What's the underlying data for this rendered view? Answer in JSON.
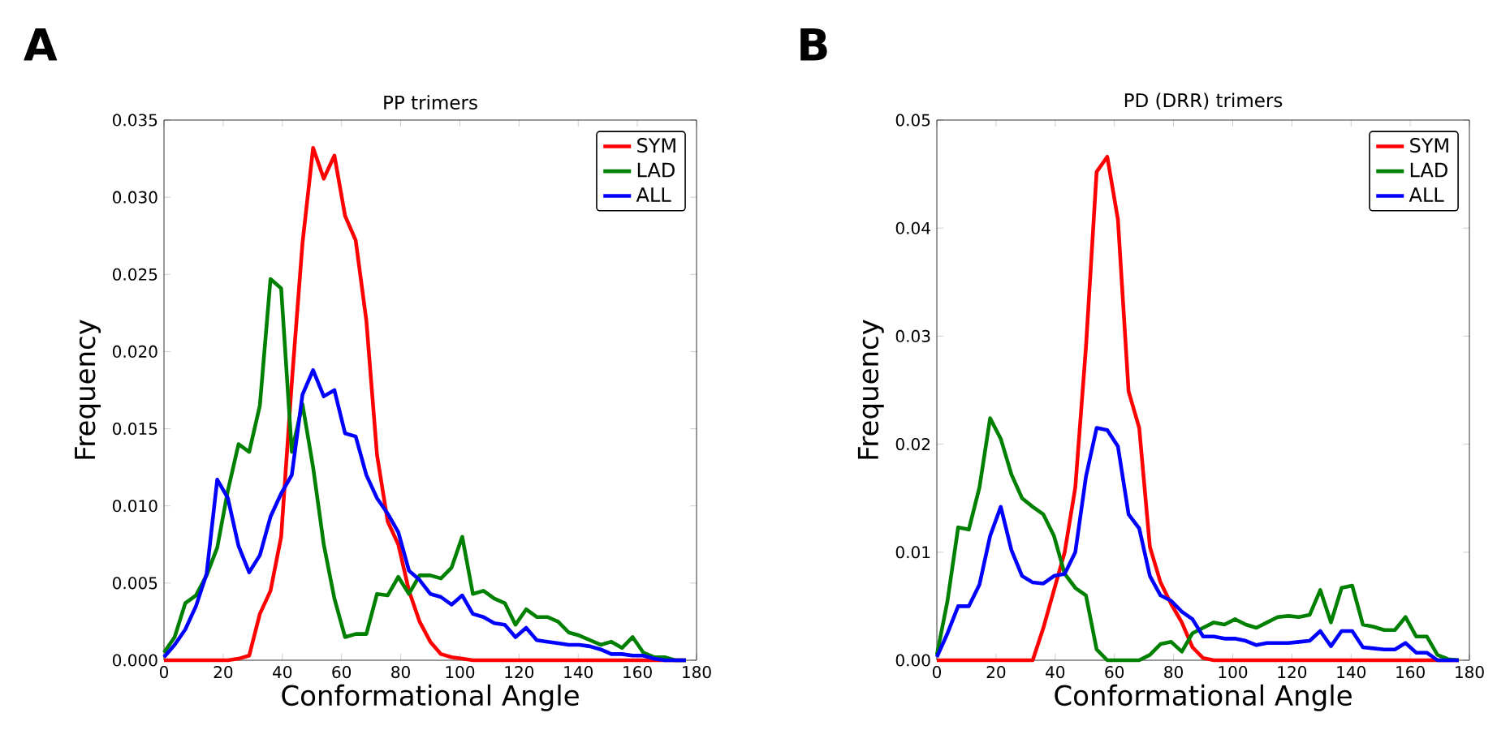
{
  "chart_data": [
    {
      "type": "line",
      "title": "PP trimers",
      "xlabel": "Conformational Angle",
      "ylabel": "Frequency",
      "annotations": [
        "A"
      ],
      "legend": "top right",
      "xlim": [
        0,
        180
      ],
      "ylim": [
        0,
        0.035
      ],
      "xticks": [
        0,
        20,
        40,
        60,
        80,
        100,
        120,
        140,
        160,
        180
      ],
      "yticks": [
        {
          "value": 0,
          "label": "0.000"
        },
        {
          "value": 0.005,
          "label": "0.005"
        },
        {
          "value": 0.01,
          "label": "0.010"
        },
        {
          "value": 0.015,
          "label": "0.015"
        },
        {
          "value": 0.02,
          "label": "0.020"
        },
        {
          "value": 0.025,
          "label": "0.025"
        },
        {
          "value": 0.03,
          "label": "0.030"
        },
        {
          "value": 0.035,
          "label": "0.035"
        }
      ],
      "x": [
        0,
        3.6,
        7.2,
        10.8,
        14.4,
        18,
        21.6,
        25.2,
        28.8,
        32.4,
        36,
        39.6,
        43.2,
        46.8,
        50.4,
        54,
        57.6,
        61.2,
        64.8,
        68.4,
        72,
        75.6,
        79.2,
        82.8,
        86.4,
        90,
        93.6,
        97.2,
        100.8,
        104.4,
        108,
        111.6,
        115.2,
        118.8,
        122.4,
        126,
        129.6,
        133.2,
        136.8,
        140.4,
        144,
        147.6,
        151.2,
        154.8,
        158.4,
        162,
        165.6,
        169.2,
        172.8,
        176.4
      ],
      "series": [
        {
          "name": "SYM",
          "color": "#ff0000",
          "values": [
            0,
            0,
            0,
            0,
            0,
            0,
            0,
            0.0001,
            0.0003,
            0.003,
            0.0045,
            0.008,
            0.018,
            0.027,
            0.0332,
            0.0312,
            0.0327,
            0.0288,
            0.0272,
            0.022,
            0.0133,
            0.009,
            0.0075,
            0.0045,
            0.0025,
            0.0012,
            0.0004,
            0.0002,
            0.0001,
            0,
            0,
            0,
            0,
            0,
            0,
            0,
            0,
            0,
            0,
            0,
            0,
            0,
            0,
            0,
            0,
            0,
            0,
            0,
            0,
            0
          ]
        },
        {
          "name": "LAD",
          "color": "#008000",
          "values": [
            0.0005,
            0.0015,
            0.0037,
            0.0042,
            0.0055,
            0.0073,
            0.011,
            0.014,
            0.0135,
            0.0165,
            0.0247,
            0.0241,
            0.0135,
            0.0166,
            0.0125,
            0.0075,
            0.004,
            0.0015,
            0.0017,
            0.0017,
            0.0043,
            0.0042,
            0.0054,
            0.0043,
            0.0055,
            0.0055,
            0.0053,
            0.006,
            0.008,
            0.0043,
            0.0045,
            0.004,
            0.0037,
            0.0023,
            0.0033,
            0.0028,
            0.0028,
            0.0025,
            0.0018,
            0.0016,
            0.0013,
            0.001,
            0.0012,
            0.0008,
            0.0015,
            0.0005,
            0.0002,
            0.0002,
            0,
            0
          ]
        },
        {
          "name": "ALL",
          "color": "#0000ff",
          "values": [
            0.0002,
            0.001,
            0.002,
            0.0035,
            0.0056,
            0.0117,
            0.0105,
            0.0074,
            0.0057,
            0.0068,
            0.0093,
            0.0108,
            0.012,
            0.0172,
            0.0188,
            0.0171,
            0.0175,
            0.0147,
            0.0145,
            0.012,
            0.0105,
            0.0095,
            0.0083,
            0.0058,
            0.0052,
            0.0043,
            0.0041,
            0.0036,
            0.0042,
            0.003,
            0.0028,
            0.0024,
            0.0023,
            0.0015,
            0.0021,
            0.0013,
            0.0012,
            0.0011,
            0.001,
            0.001,
            0.0009,
            0.0007,
            0.0004,
            0.0004,
            0.0003,
            0.0003,
            0.0001,
            0,
            0,
            0
          ]
        }
      ]
    },
    {
      "type": "line",
      "title": "PD (DRR) trimers",
      "xlabel": "Conformational Angle",
      "ylabel": "Frequency",
      "annotations": [
        "B"
      ],
      "legend": "top right",
      "xlim": [
        0,
        180
      ],
      "ylim": [
        0,
        0.05
      ],
      "xticks": [
        0,
        20,
        40,
        60,
        80,
        100,
        120,
        140,
        160,
        180
      ],
      "yticks": [
        {
          "value": 0,
          "label": "0.00"
        },
        {
          "value": 0.01,
          "label": "0.01"
        },
        {
          "value": 0.02,
          "label": "0.02"
        },
        {
          "value": 0.03,
          "label": "0.03"
        },
        {
          "value": 0.04,
          "label": "0.04"
        },
        {
          "value": 0.05,
          "label": "0.05"
        }
      ],
      "x": [
        0,
        3.6,
        7.2,
        10.8,
        14.4,
        18,
        21.6,
        25.2,
        28.8,
        32.4,
        36,
        39.6,
        43.2,
        46.8,
        50.4,
        54,
        57.6,
        61.2,
        64.8,
        68.4,
        72,
        75.6,
        79.2,
        82.8,
        86.4,
        90,
        93.6,
        97.2,
        100.8,
        104.4,
        108,
        111.6,
        115.2,
        118.8,
        122.4,
        126,
        129.6,
        133.2,
        136.8,
        140.4,
        144,
        147.6,
        151.2,
        154.8,
        158.4,
        162,
        165.6,
        169.2,
        172.8,
        176.4
      ],
      "series": [
        {
          "name": "SYM",
          "color": "#ff0000",
          "values": [
            0,
            0,
            0,
            0,
            0,
            0,
            0,
            0,
            0,
            0,
            0.003,
            0.0065,
            0.01,
            0.016,
            0.029,
            0.0452,
            0.0466,
            0.0408,
            0.0249,
            0.0215,
            0.0105,
            0.0072,
            0.0052,
            0.0035,
            0.0012,
            0.0002,
            0,
            0,
            0,
            0,
            0,
            0,
            0,
            0,
            0,
            0,
            0,
            0,
            0,
            0,
            0,
            0,
            0,
            0,
            0,
            0,
            0,
            0,
            0,
            0
          ]
        },
        {
          "name": "LAD",
          "color": "#008000",
          "values": [
            0.0005,
            0.0055,
            0.0123,
            0.0121,
            0.016,
            0.0224,
            0.0205,
            0.0172,
            0.015,
            0.0142,
            0.0135,
            0.0115,
            0.008,
            0.0067,
            0.006,
            0.001,
            0,
            0,
            0,
            0,
            0.0005,
            0.0015,
            0.0017,
            0.0008,
            0.0025,
            0.003,
            0.0035,
            0.0033,
            0.0038,
            0.0033,
            0.003,
            0.0035,
            0.004,
            0.0041,
            0.004,
            0.0042,
            0.0065,
            0.0035,
            0.0067,
            0.0069,
            0.0033,
            0.0031,
            0.0028,
            0.0028,
            0.004,
            0.0022,
            0.0022,
            0.0005,
            0.0001,
            0
          ]
        },
        {
          "name": "ALL",
          "color": "#0000ff",
          "values": [
            0.0003,
            0.0025,
            0.005,
            0.005,
            0.007,
            0.0115,
            0.0142,
            0.0102,
            0.0078,
            0.0072,
            0.0071,
            0.0078,
            0.008,
            0.01,
            0.017,
            0.0215,
            0.0213,
            0.0198,
            0.0135,
            0.0122,
            0.0078,
            0.006,
            0.0055,
            0.0045,
            0.0038,
            0.0022,
            0.0022,
            0.002,
            0.002,
            0.0018,
            0.0014,
            0.0016,
            0.0016,
            0.0016,
            0.0017,
            0.0018,
            0.0027,
            0.0013,
            0.0027,
            0.0027,
            0.0012,
            0.0011,
            0.001,
            0.001,
            0.0016,
            0.0007,
            0.0007,
            0,
            0,
            0
          ]
        }
      ]
    }
  ]
}
